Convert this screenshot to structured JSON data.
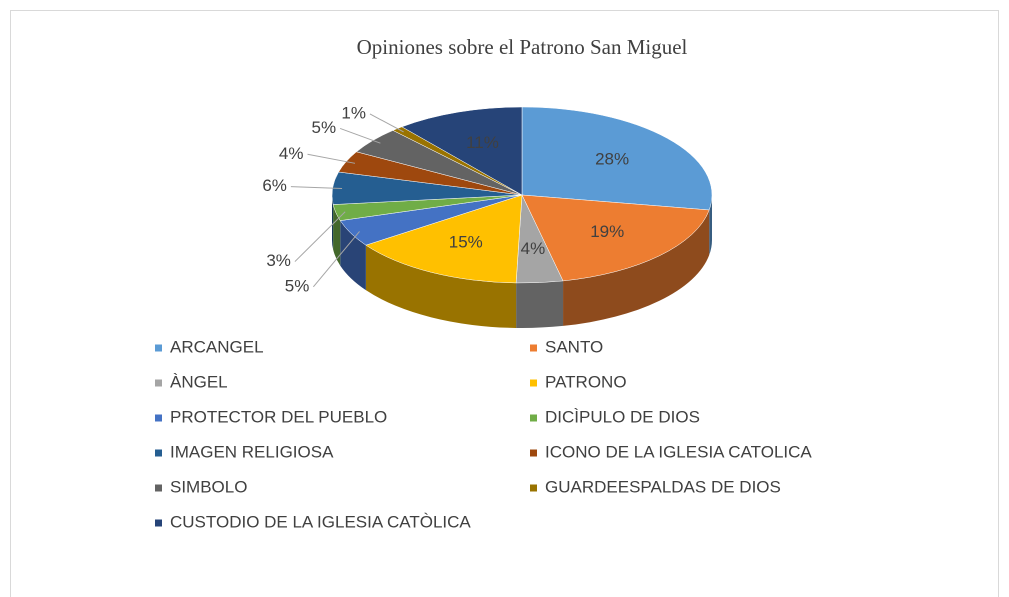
{
  "chart_data": {
    "type": "pie",
    "title": "Opiniones sobre el Patrono San Miguel",
    "categories": [
      "ARCANGEL",
      "SANTO",
      "ÀNGEL",
      "PATRONO",
      "PROTECTOR DEL PUEBLO",
      "DICÌPULO DE DIOS",
      "IMAGEN RELIGIOSA",
      "ICONO DE LA IGLESIA CATOLICA",
      "SIMBOLO",
      "GUARDEESPALDAS DE DIOS",
      "CUSTODIO DE LA IGLESIA CATÒLICA"
    ],
    "values": [
      28,
      19,
      4,
      15,
      5,
      3,
      6,
      4,
      5,
      1,
      11
    ],
    "value_labels": [
      "28%",
      "19%",
      "4%",
      "15%",
      "5%",
      "3%",
      "6%",
      "4%",
      "5%",
      "1%",
      "11%"
    ],
    "colors": [
      "#5b9bd5",
      "#ed7d31",
      "#a5a5a5",
      "#ffc000",
      "#4472c4",
      "#70ad47",
      "#255e91",
      "#9e480e",
      "#636363",
      "#997300",
      "#264478"
    ],
    "legend": "bottom"
  }
}
